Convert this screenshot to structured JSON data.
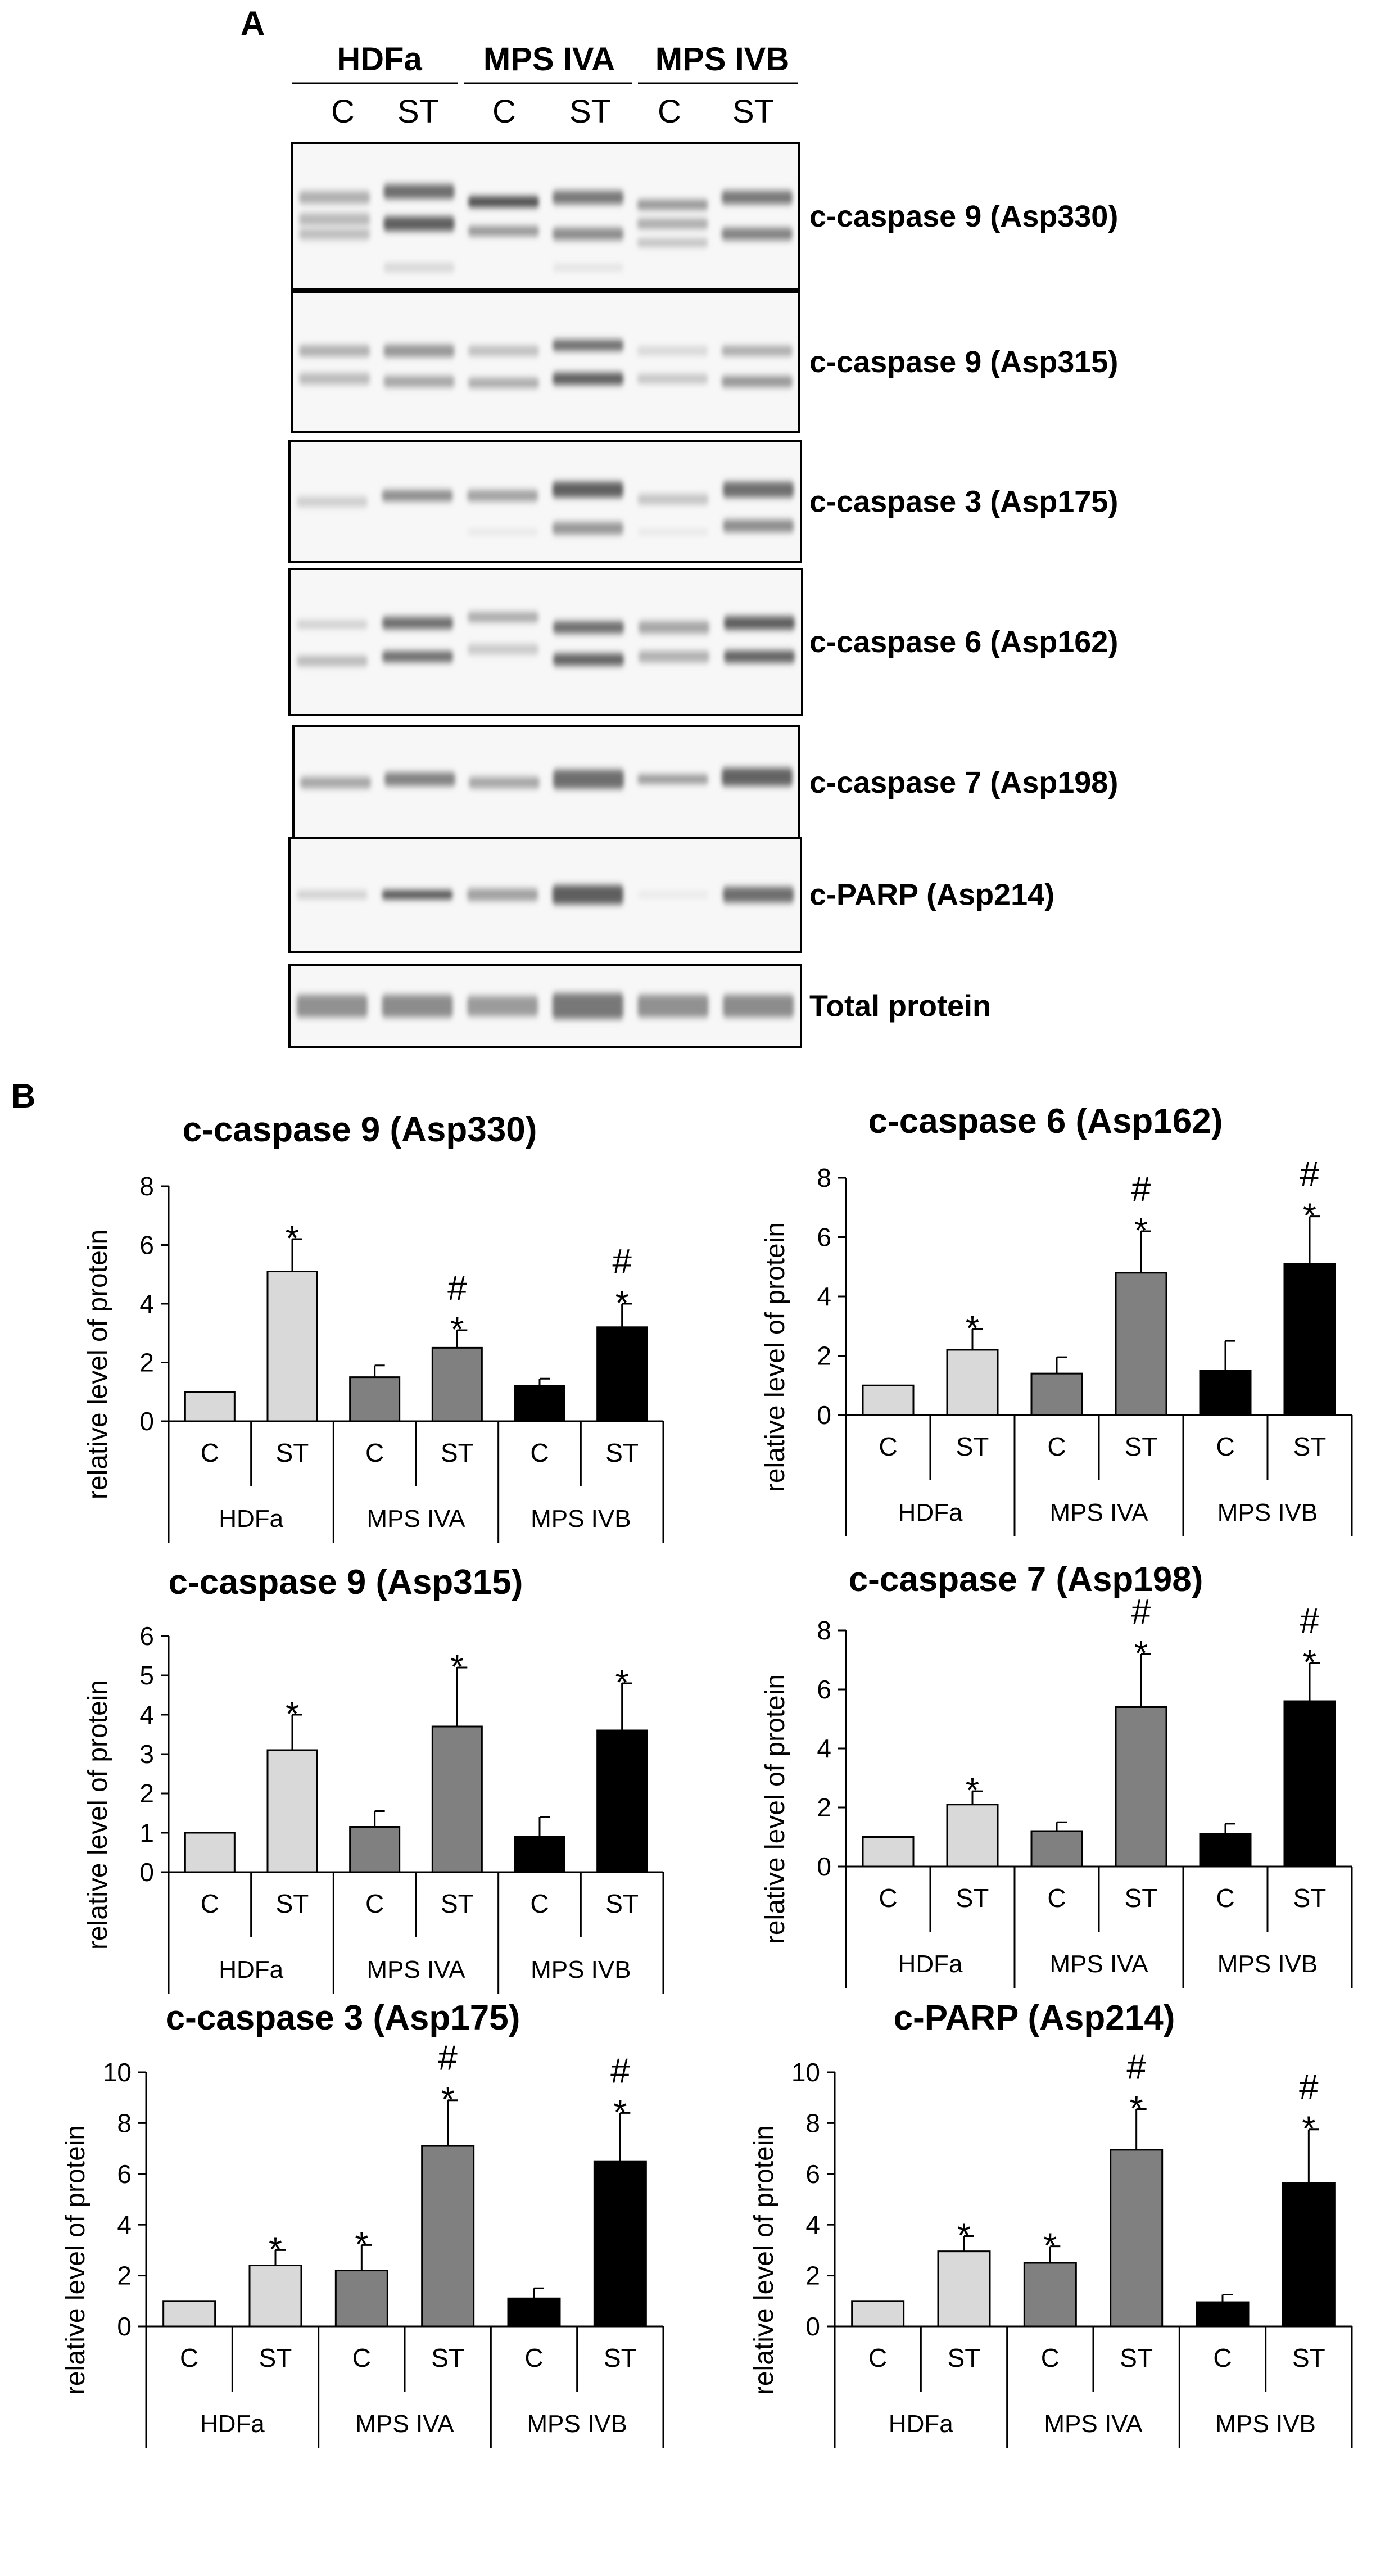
{
  "panel_a": {
    "label": "A",
    "groups": [
      "HDFa",
      "MPS IVA",
      "MPS IVB"
    ],
    "lanes": [
      "C",
      "ST",
      "C",
      "ST",
      "C",
      "ST"
    ],
    "blots": [
      {
        "label": "c-caspase 9 (Asp330)"
      },
      {
        "label": "c-caspase 9 (Asp315)"
      },
      {
        "label": "c-caspase 3 (Asp175)"
      },
      {
        "label": "c-caspase 6 (Asp162)"
      },
      {
        "label": "c-caspase 7 (Asp198)"
      },
      {
        "label": "c-PARP (Asp214)"
      },
      {
        "label": "Total protein"
      }
    ]
  },
  "panel_b": {
    "label": "B"
  },
  "chart_data": [
    {
      "type": "bar",
      "title": "c-caspase 9 (Asp330)",
      "ylabel": "relative level of protein",
      "ylim": [
        0,
        8
      ],
      "yticks": [
        0,
        2,
        4,
        6,
        8
      ],
      "categories": [
        "C",
        "ST",
        "C",
        "ST",
        "C",
        "ST"
      ],
      "groups": [
        "HDFa",
        "MPS IVA",
        "MPS IVB"
      ],
      "values": [
        1.0,
        5.1,
        1.5,
        2.5,
        1.2,
        3.2
      ],
      "errors": [
        0.0,
        1.1,
        0.4,
        0.6,
        0.25,
        0.8
      ],
      "significance": [
        "",
        "*",
        "",
        "#*",
        "",
        "#*"
      ],
      "colors": [
        "#d9d9d9",
        "#d9d9d9",
        "#808080",
        "#808080",
        "#000000",
        "#000000"
      ]
    },
    {
      "type": "bar",
      "title": "c-caspase 6 (Asp162)",
      "ylabel": "relative level of protein",
      "ylim": [
        0,
        8
      ],
      "yticks": [
        0,
        2,
        4,
        6,
        8
      ],
      "categories": [
        "C",
        "ST",
        "C",
        "ST",
        "C",
        "ST"
      ],
      "groups": [
        "HDFa",
        "MPS IVA",
        "MPS IVB"
      ],
      "values": [
        1.0,
        2.2,
        1.4,
        4.8,
        1.5,
        5.1
      ],
      "errors": [
        0.0,
        0.7,
        0.55,
        1.4,
        1.0,
        1.6
      ],
      "significance": [
        "",
        "*",
        "",
        "#*",
        "",
        "#*"
      ],
      "colors": [
        "#d9d9d9",
        "#d9d9d9",
        "#808080",
        "#808080",
        "#000000",
        "#000000"
      ]
    },
    {
      "type": "bar",
      "title": "c-caspase 9 (Asp315)",
      "ylabel": "relative level of protein",
      "ylim": [
        0,
        6
      ],
      "yticks": [
        0,
        1,
        2,
        3,
        4,
        5,
        6
      ],
      "categories": [
        "C",
        "ST",
        "C",
        "ST",
        "C",
        "ST"
      ],
      "groups": [
        "HDFa",
        "MPS IVA",
        "MPS IVB"
      ],
      "values": [
        1.0,
        3.1,
        1.15,
        3.7,
        0.9,
        3.6
      ],
      "errors": [
        0.0,
        0.9,
        0.4,
        1.5,
        0.5,
        1.2
      ],
      "significance": [
        "",
        "*",
        "",
        "*",
        "",
        "*"
      ],
      "colors": [
        "#d9d9d9",
        "#d9d9d9",
        "#808080",
        "#808080",
        "#000000",
        "#000000"
      ]
    },
    {
      "type": "bar",
      "title": "c-caspase 7 (Asp198)",
      "ylabel": "relative level of protein",
      "ylim": [
        0,
        8
      ],
      "yticks": [
        0,
        2,
        4,
        6,
        8
      ],
      "categories": [
        "C",
        "ST",
        "C",
        "ST",
        "C",
        "ST"
      ],
      "groups": [
        "HDFa",
        "MPS IVA",
        "MPS IVB"
      ],
      "values": [
        1.0,
        2.1,
        1.2,
        5.4,
        1.1,
        5.6
      ],
      "errors": [
        0.0,
        0.45,
        0.3,
        1.8,
        0.35,
        1.3
      ],
      "significance": [
        "",
        "*",
        "",
        "#*",
        "",
        "#*"
      ],
      "colors": [
        "#d9d9d9",
        "#d9d9d9",
        "#808080",
        "#808080",
        "#000000",
        "#000000"
      ]
    },
    {
      "type": "bar",
      "title": "c-caspase 3 (Asp175)",
      "ylabel": "relative level of protein",
      "ylim": [
        0,
        10
      ],
      "yticks": [
        0,
        2,
        4,
        6,
        8,
        10
      ],
      "categories": [
        "C",
        "ST",
        "C",
        "ST",
        "C",
        "ST"
      ],
      "groups": [
        "HDFa",
        "MPS IVA",
        "MPS IVB"
      ],
      "values": [
        1.0,
        2.4,
        2.2,
        7.1,
        1.1,
        6.5
      ],
      "errors": [
        0.0,
        0.6,
        1.0,
        1.8,
        0.4,
        1.9
      ],
      "significance": [
        "",
        "*",
        "*",
        "#*",
        "",
        "#*"
      ],
      "colors": [
        "#d9d9d9",
        "#d9d9d9",
        "#808080",
        "#808080",
        "#000000",
        "#000000"
      ]
    },
    {
      "type": "bar",
      "title": "c-PARP (Asp214)",
      "ylabel": "relative level of protein",
      "ylim": [
        0,
        10
      ],
      "yticks": [
        0,
        2,
        4,
        6,
        8,
        10
      ],
      "categories": [
        "C",
        "ST",
        "C",
        "ST",
        "C",
        "ST"
      ],
      "groups": [
        "HDFa",
        "MPS IVA",
        "MPS IVB"
      ],
      "values": [
        1.0,
        2.95,
        2.5,
        6.95,
        0.95,
        5.65
      ],
      "errors": [
        0.0,
        0.6,
        0.65,
        1.6,
        0.3,
        2.1
      ],
      "significance": [
        "",
        "*",
        "*",
        "#*",
        "",
        "#*"
      ],
      "colors": [
        "#d9d9d9",
        "#d9d9d9",
        "#808080",
        "#808080",
        "#000000",
        "#000000"
      ]
    }
  ]
}
